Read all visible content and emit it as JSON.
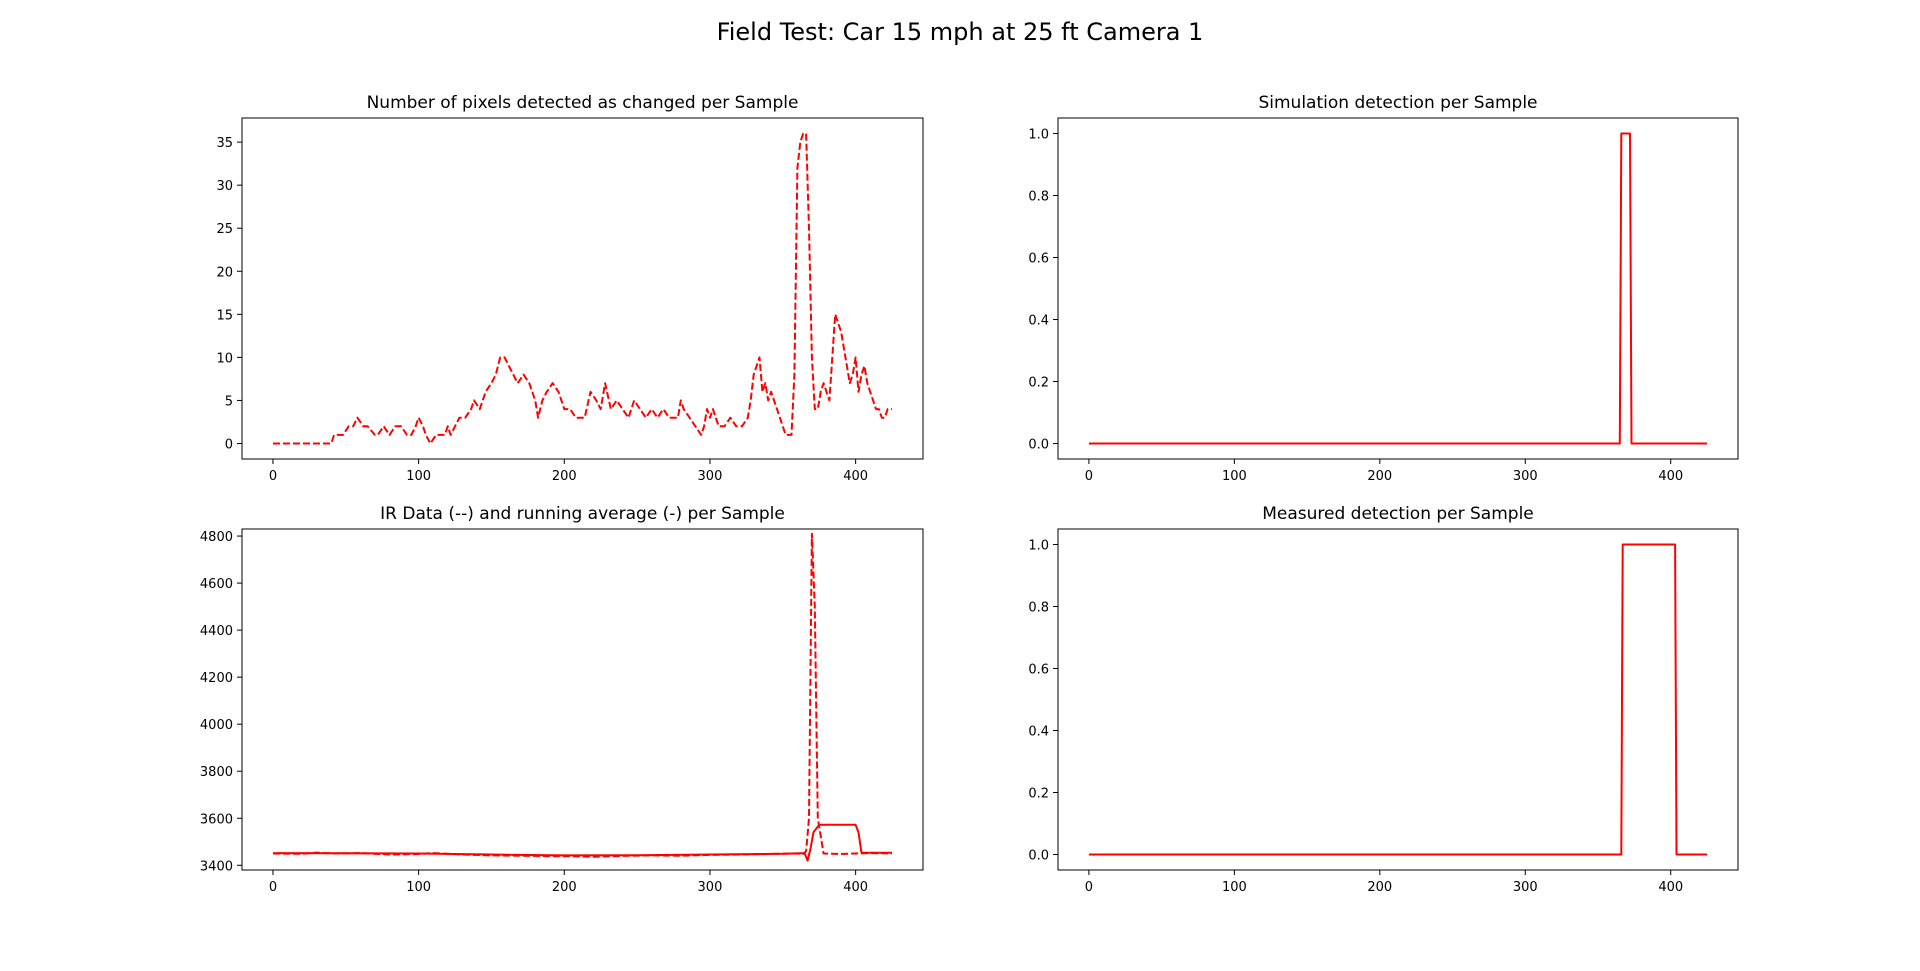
{
  "figure": {
    "title": "Field Test: Car 15 mph at 25 ft Camera 1"
  },
  "colors": {
    "series": "#ff0000",
    "axis": "#000000"
  },
  "chart_data": [
    {
      "type": "line",
      "title": "Number of pixels detected as changed per Sample",
      "xlim": [
        -21.25,
        446.25
      ],
      "ylim": [
        -1.8,
        37.8
      ],
      "xticks": [
        0,
        100,
        200,
        300,
        400
      ],
      "yticks": [
        0,
        5,
        10,
        15,
        20,
        25,
        30,
        35
      ],
      "grid": false,
      "series": [
        {
          "style": "dashed",
          "x": [
            0,
            40,
            42,
            48,
            52,
            55,
            58,
            62,
            65,
            70,
            72,
            76,
            80,
            84,
            88,
            92,
            95,
            98,
            100,
            103,
            105,
            108,
            112,
            116,
            118,
            120,
            122,
            128,
            132,
            136,
            138,
            142,
            146,
            150,
            153,
            156,
            159,
            162,
            165,
            168,
            172,
            176,
            180,
            182,
            185,
            188,
            192,
            196,
            200,
            204,
            208,
            212,
            214,
            218,
            222,
            225,
            228,
            232,
            236,
            240,
            244,
            248,
            252,
            256,
            260,
            264,
            268,
            272,
            276,
            278,
            280,
            282,
            286,
            290,
            294,
            296,
            298,
            300,
            302,
            306,
            310,
            314,
            318,
            322,
            326,
            328,
            330,
            332,
            334,
            336,
            338,
            340,
            342,
            346,
            350,
            352,
            354,
            356,
            358,
            360,
            362,
            364,
            366,
            368,
            370,
            372,
            374,
            376,
            378,
            382,
            384,
            386,
            388,
            390,
            392,
            394,
            396,
            398,
            400,
            402,
            404,
            406,
            408,
            410,
            412,
            414,
            416,
            418,
            420,
            422,
            425
          ],
          "values": [
            0,
            0,
            1,
            1,
            2,
            2,
            3,
            2,
            2,
            1,
            1,
            2,
            1,
            2,
            2,
            1,
            1,
            2,
            3,
            2,
            1,
            0,
            1,
            1,
            1,
            2,
            1,
            3,
            3,
            4,
            5,
            4,
            6,
            7,
            8,
            10,
            10,
            9,
            8,
            7,
            8,
            7,
            5,
            3,
            5,
            6,
            7,
            6,
            4,
            4,
            3,
            3,
            3,
            6,
            5,
            4,
            7,
            4,
            5,
            4,
            3,
            5,
            4,
            3,
            4,
            3,
            4,
            3,
            3,
            3,
            5,
            4,
            3,
            2,
            1,
            2,
            4,
            3,
            4,
            2,
            2,
            3,
            2,
            2,
            3,
            5,
            8,
            9,
            10,
            6,
            7,
            5,
            6,
            4,
            2,
            1,
            1,
            1,
            8,
            32,
            35,
            36,
            36,
            25,
            10,
            4,
            4,
            6,
            7,
            5,
            10,
            15,
            14,
            13,
            11,
            9,
            7,
            8,
            10,
            6,
            8,
            9,
            7,
            6,
            5,
            4,
            4,
            3,
            3,
            4,
            4
          ]
        }
      ]
    },
    {
      "type": "line",
      "title": "Simulation detection per Sample",
      "xlim": [
        -21.25,
        446.25
      ],
      "ylim": [
        -0.05,
        1.05
      ],
      "xticks": [
        0,
        100,
        200,
        300,
        400
      ],
      "yticks": [
        0.0,
        0.2,
        0.4,
        0.6,
        0.8,
        1.0
      ],
      "grid": false,
      "series": [
        {
          "style": "solid",
          "x": [
            0,
            365,
            366,
            372,
            373,
            425
          ],
          "values": [
            0,
            0,
            1,
            1,
            0,
            0
          ]
        }
      ]
    },
    {
      "type": "line",
      "title": "IR Data (--) and running average (-) per Sample",
      "xlim": [
        -21.25,
        446.25
      ],
      "ylim": [
        3380,
        4830
      ],
      "xticks": [
        0,
        100,
        200,
        300,
        400
      ],
      "yticks": [
        3400,
        3600,
        3800,
        4000,
        4200,
        4400,
        4600,
        4800
      ],
      "grid": false,
      "series": [
        {
          "style": "dashed",
          "x": [
            0,
            20,
            30,
            40,
            60,
            80,
            100,
            110,
            130,
            150,
            180,
            210,
            220,
            240,
            260,
            280,
            300,
            320,
            340,
            360,
            364,
            366,
            368,
            370,
            372,
            374,
            378,
            390,
            400,
            410,
            425
          ],
          "values": [
            3450,
            3449,
            3454,
            3450,
            3452,
            3446,
            3448,
            3452,
            3446,
            3442,
            3440,
            3438,
            3436,
            3440,
            3442,
            3441,
            3444,
            3446,
            3448,
            3450,
            3448,
            3460,
            3600,
            4810,
            4500,
            3600,
            3450,
            3448,
            3450,
            3452,
            3450
          ]
        },
        {
          "style": "solid",
          "x": [
            0,
            50,
            100,
            150,
            200,
            250,
            300,
            350,
            365,
            367,
            369,
            371,
            375,
            380,
            400,
            402,
            404,
            425
          ],
          "values": [
            3452,
            3451,
            3450,
            3446,
            3442,
            3443,
            3446,
            3449,
            3452,
            3420,
            3470,
            3540,
            3572,
            3572,
            3572,
            3540,
            3453,
            3453
          ]
        }
      ]
    },
    {
      "type": "line",
      "title": "Measured detection per Sample",
      "xlim": [
        -21.25,
        446.25
      ],
      "ylim": [
        -0.05,
        1.05
      ],
      "xticks": [
        0,
        100,
        200,
        300,
        400
      ],
      "yticks": [
        0.0,
        0.2,
        0.4,
        0.6,
        0.8,
        1.0
      ],
      "grid": false,
      "series": [
        {
          "style": "solid",
          "x": [
            0,
            366,
            367,
            403,
            404,
            425
          ],
          "values": [
            0,
            0,
            1,
            1,
            0,
            0
          ]
        }
      ]
    }
  ]
}
